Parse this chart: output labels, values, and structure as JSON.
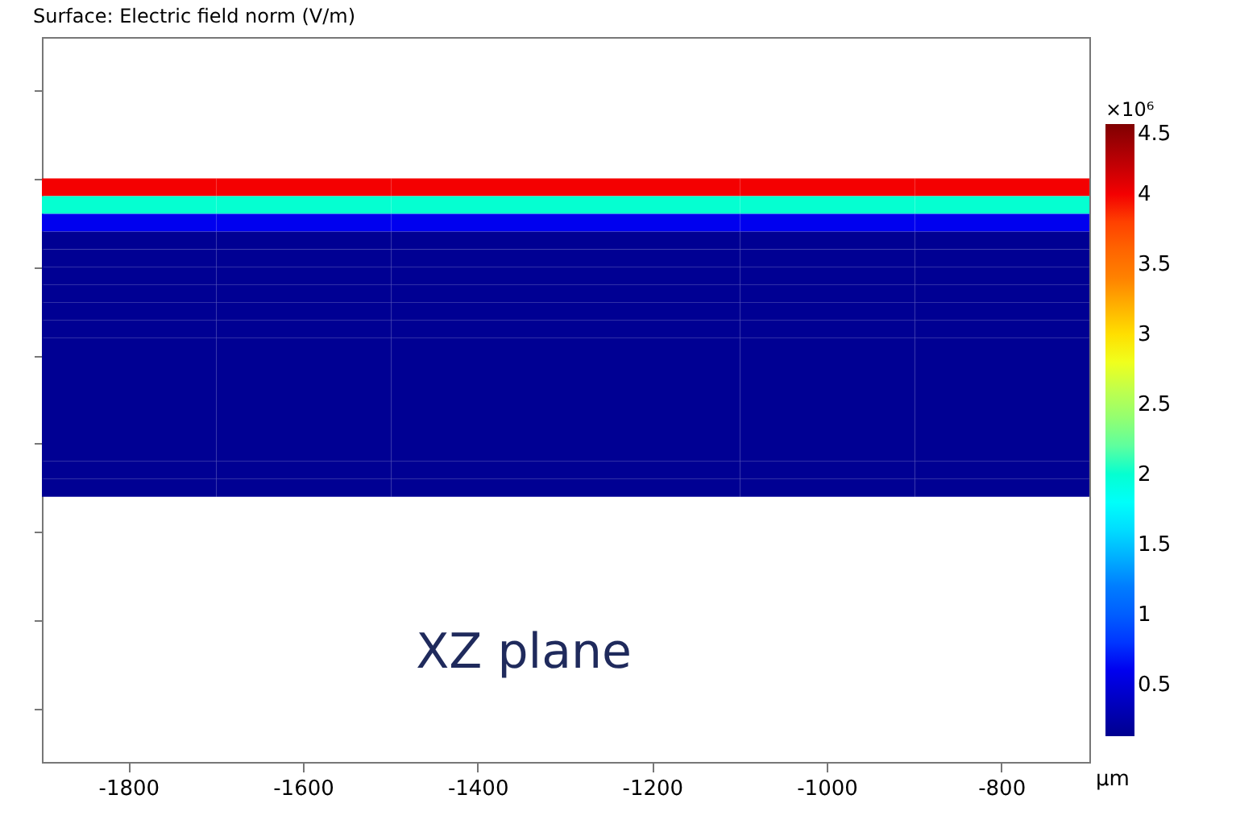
{
  "chart_data": {
    "type": "heatmap",
    "title": "Surface: Electric field norm (V/m)",
    "xlabel": "μm",
    "clabel": "×10⁶",
    "categories": [
      "-1800",
      "-1600",
      "-1400",
      "-1200",
      "-1000",
      "-800"
    ],
    "y_categories": [
      null,
      null,
      null,
      null,
      null,
      null,
      null,
      null,
      null,
      null,
      null,
      null,
      null,
      null,
      null,
      null,
      null,
      null
    ],
    "cells": [
      [
        4.0,
        4.0,
        4.0,
        4.0,
        4.0,
        4.0
      ],
      [
        2.0,
        2.0,
        2.0,
        2.0,
        2.0,
        2.0
      ],
      [
        0.6,
        0.6,
        0.6,
        0.6,
        0.6,
        0.6
      ],
      [
        0.15,
        0.15,
        0.15,
        0.15,
        0.15,
        0.15
      ],
      [
        0.15,
        0.15,
        0.15,
        0.15,
        0.15,
        0.15
      ],
      [
        0.15,
        0.15,
        0.15,
        0.15,
        0.15,
        0.15
      ],
      [
        0.15,
        0.15,
        0.15,
        0.15,
        0.15,
        0.15
      ],
      [
        0.15,
        0.15,
        0.15,
        0.15,
        0.15,
        0.15
      ],
      [
        0.15,
        0.15,
        0.15,
        0.15,
        0.15,
        0.15
      ],
      [
        0.15,
        0.15,
        0.15,
        0.15,
        0.15,
        0.15
      ],
      [
        0.15,
        0.15,
        0.15,
        0.15,
        0.15,
        0.15
      ],
      [
        0.15,
        0.15,
        0.15,
        0.15,
        0.15,
        0.15
      ],
      [
        0.15,
        0.15,
        0.15,
        0.15,
        0.15,
        0.15
      ],
      [
        0.15,
        0.15,
        0.15,
        0.15,
        0.15,
        0.15
      ],
      [
        0.15,
        0.15,
        0.15,
        0.15,
        0.15,
        0.15
      ],
      [
        0.15,
        0.15,
        0.15,
        0.15,
        0.15,
        0.15
      ],
      [
        0.15,
        0.15,
        0.15,
        0.15,
        0.15,
        0.15
      ],
      [
        0.15,
        0.15,
        0.15,
        0.15,
        0.15,
        0.15
      ]
    ],
    "clim": [
      0.13,
      4.5
    ],
    "cticks": [
      0.5,
      1,
      1.5,
      2,
      2.5,
      3,
      3.5,
      4,
      4.5
    ],
    "tick_labels": "x",
    "grid": false,
    "annotations": [
      "XZ plane"
    ]
  }
}
